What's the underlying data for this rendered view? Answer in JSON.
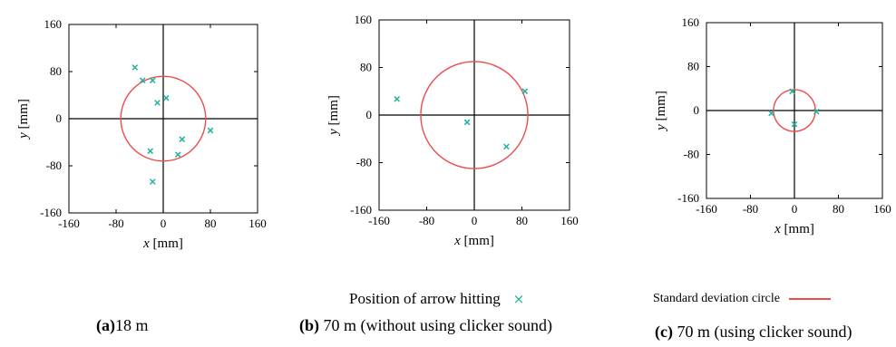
{
  "chart_data": [
    {
      "type": "scatter",
      "panel": "a",
      "caption_letter": "(a)",
      "caption_text": "18 m",
      "xlabel_var": "x",
      "xlabel_unit": " [mm]",
      "ylabel_var": "y",
      "ylabel_unit": " [mm]",
      "xlim": [
        -160,
        160
      ],
      "ylim": [
        -160,
        160
      ],
      "xticks": [
        -160,
        -80,
        0,
        80,
        160
      ],
      "yticks": [
        -160,
        -80,
        0,
        80,
        160
      ],
      "points": [
        {
          "x": -48,
          "y": 87
        },
        {
          "x": -35,
          "y": 65
        },
        {
          "x": -18,
          "y": 65
        },
        {
          "x": -10,
          "y": 27
        },
        {
          "x": 5,
          "y": 35
        },
        {
          "x": 80,
          "y": -20
        },
        {
          "x": 32,
          "y": -35
        },
        {
          "x": -22,
          "y": -55
        },
        {
          "x": 25,
          "y": -61
        },
        {
          "x": -18,
          "y": -107
        }
      ],
      "circle": {
        "cx": 0,
        "cy": 0,
        "r": 72
      }
    },
    {
      "type": "scatter",
      "panel": "b",
      "caption_letter": "(b)",
      "caption_text": " 70 m (without using clicker sound)",
      "xlabel_var": "x",
      "xlabel_unit": " [mm]",
      "ylabel_var": "y",
      "ylabel_unit": " [mm]",
      "xlim": [
        -160,
        160
      ],
      "ylim": [
        -160,
        160
      ],
      "xticks": [
        -160,
        -80,
        0,
        80,
        160
      ],
      "yticks": [
        -160,
        -80,
        0,
        80,
        160
      ],
      "points": [
        {
          "x": -130,
          "y": 27
        },
        {
          "x": -12,
          "y": -12
        },
        {
          "x": 54,
          "y": -53
        },
        {
          "x": 85,
          "y": 40
        }
      ],
      "circle": {
        "cx": 0,
        "cy": 0,
        "r": 90
      }
    },
    {
      "type": "scatter",
      "panel": "c",
      "caption_letter": "(c)",
      "caption_text": " 70 m (using clicker sound)",
      "xlabel_var": "x",
      "xlabel_unit": " [mm]",
      "ylabel_var": "y",
      "ylabel_unit": " [mm]",
      "xlim": [
        -160,
        160
      ],
      "ylim": [
        -160,
        160
      ],
      "xticks": [
        -160,
        -80,
        0,
        80,
        160
      ],
      "yticks": [
        -160,
        -80,
        0,
        80,
        160
      ],
      "points": [
        {
          "x": -4,
          "y": 35
        },
        {
          "x": -42,
          "y": -5
        },
        {
          "x": 0,
          "y": -25
        },
        {
          "x": 40,
          "y": -2
        }
      ],
      "circle": {
        "cx": 0,
        "cy": 0,
        "r": 38
      }
    }
  ],
  "legend": {
    "points_label": "Position of arrow hitting",
    "points_marker": "×",
    "circle_label": "Standard deviation circle"
  },
  "colors": {
    "points": "#1fb39a",
    "circle": "#ee4b4b",
    "axes": "#000000"
  }
}
